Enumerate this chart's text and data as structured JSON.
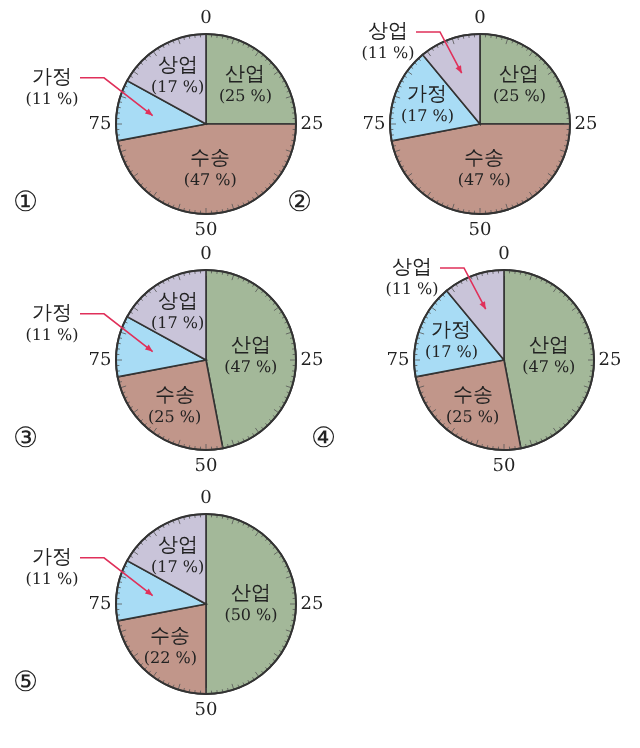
{
  "chart_data": [
    {
      "type": "pie",
      "title": "①",
      "categories": [
        "산업",
        "수송",
        "가정",
        "상업"
      ],
      "values": [
        25,
        47,
        11,
        17
      ],
      "colors": [
        "#a3b899",
        "#c1968a",
        "#a8dcf5",
        "#c9c4d9"
      ],
      "value_labels": [
        "(25 %)",
        "(47 %)",
        "(11 %)",
        "(17 %)"
      ],
      "annotations": [
        "0",
        "25",
        "50",
        "75"
      ],
      "legend": false
    },
    {
      "type": "pie",
      "title": "②",
      "categories": [
        "산업",
        "수송",
        "가정",
        "상업"
      ],
      "values": [
        25,
        47,
        17,
        11
      ],
      "colors": [
        "#a3b899",
        "#c1968a",
        "#a8dcf5",
        "#c9c4d9"
      ],
      "value_labels": [
        "(25 %)",
        "(47 %)",
        "(17 %)",
        "(11 %)"
      ],
      "annotations": [
        "0",
        "25",
        "50",
        "75"
      ],
      "legend": false
    },
    {
      "type": "pie",
      "title": "③",
      "categories": [
        "산업",
        "수송",
        "가정",
        "상업"
      ],
      "values": [
        47,
        25,
        11,
        17
      ],
      "colors": [
        "#a3b899",
        "#c1968a",
        "#a8dcf5",
        "#c9c4d9"
      ],
      "value_labels": [
        "(47 %)",
        "(25 %)",
        "(11 %)",
        "(17 %)"
      ],
      "annotations": [
        "0",
        "25",
        "50",
        "75"
      ],
      "legend": false
    },
    {
      "type": "pie",
      "title": "④",
      "categories": [
        "산업",
        "수송",
        "가정",
        "상업"
      ],
      "values": [
        47,
        25,
        17,
        11
      ],
      "colors": [
        "#a3b899",
        "#c1968a",
        "#a8dcf5",
        "#c9c4d9"
      ],
      "value_labels": [
        "(47 %)",
        "(25 %)",
        "(17 %)",
        "(11 %)"
      ],
      "annotations": [
        "0",
        "25",
        "50",
        "75"
      ],
      "legend": false
    },
    {
      "type": "pie",
      "title": "⑤",
      "categories": [
        "산업",
        "수송",
        "가정",
        "상업"
      ],
      "values": [
        50,
        22,
        11,
        17
      ],
      "colors": [
        "#a3b899",
        "#c1968a",
        "#a8dcf5",
        "#c9c4d9"
      ],
      "value_labels": [
        "(50 %)",
        "(22 %)",
        "(11 %)",
        "(17 %)"
      ],
      "annotations": [
        "0",
        "25",
        "50",
        "75"
      ],
      "legend": false
    }
  ]
}
